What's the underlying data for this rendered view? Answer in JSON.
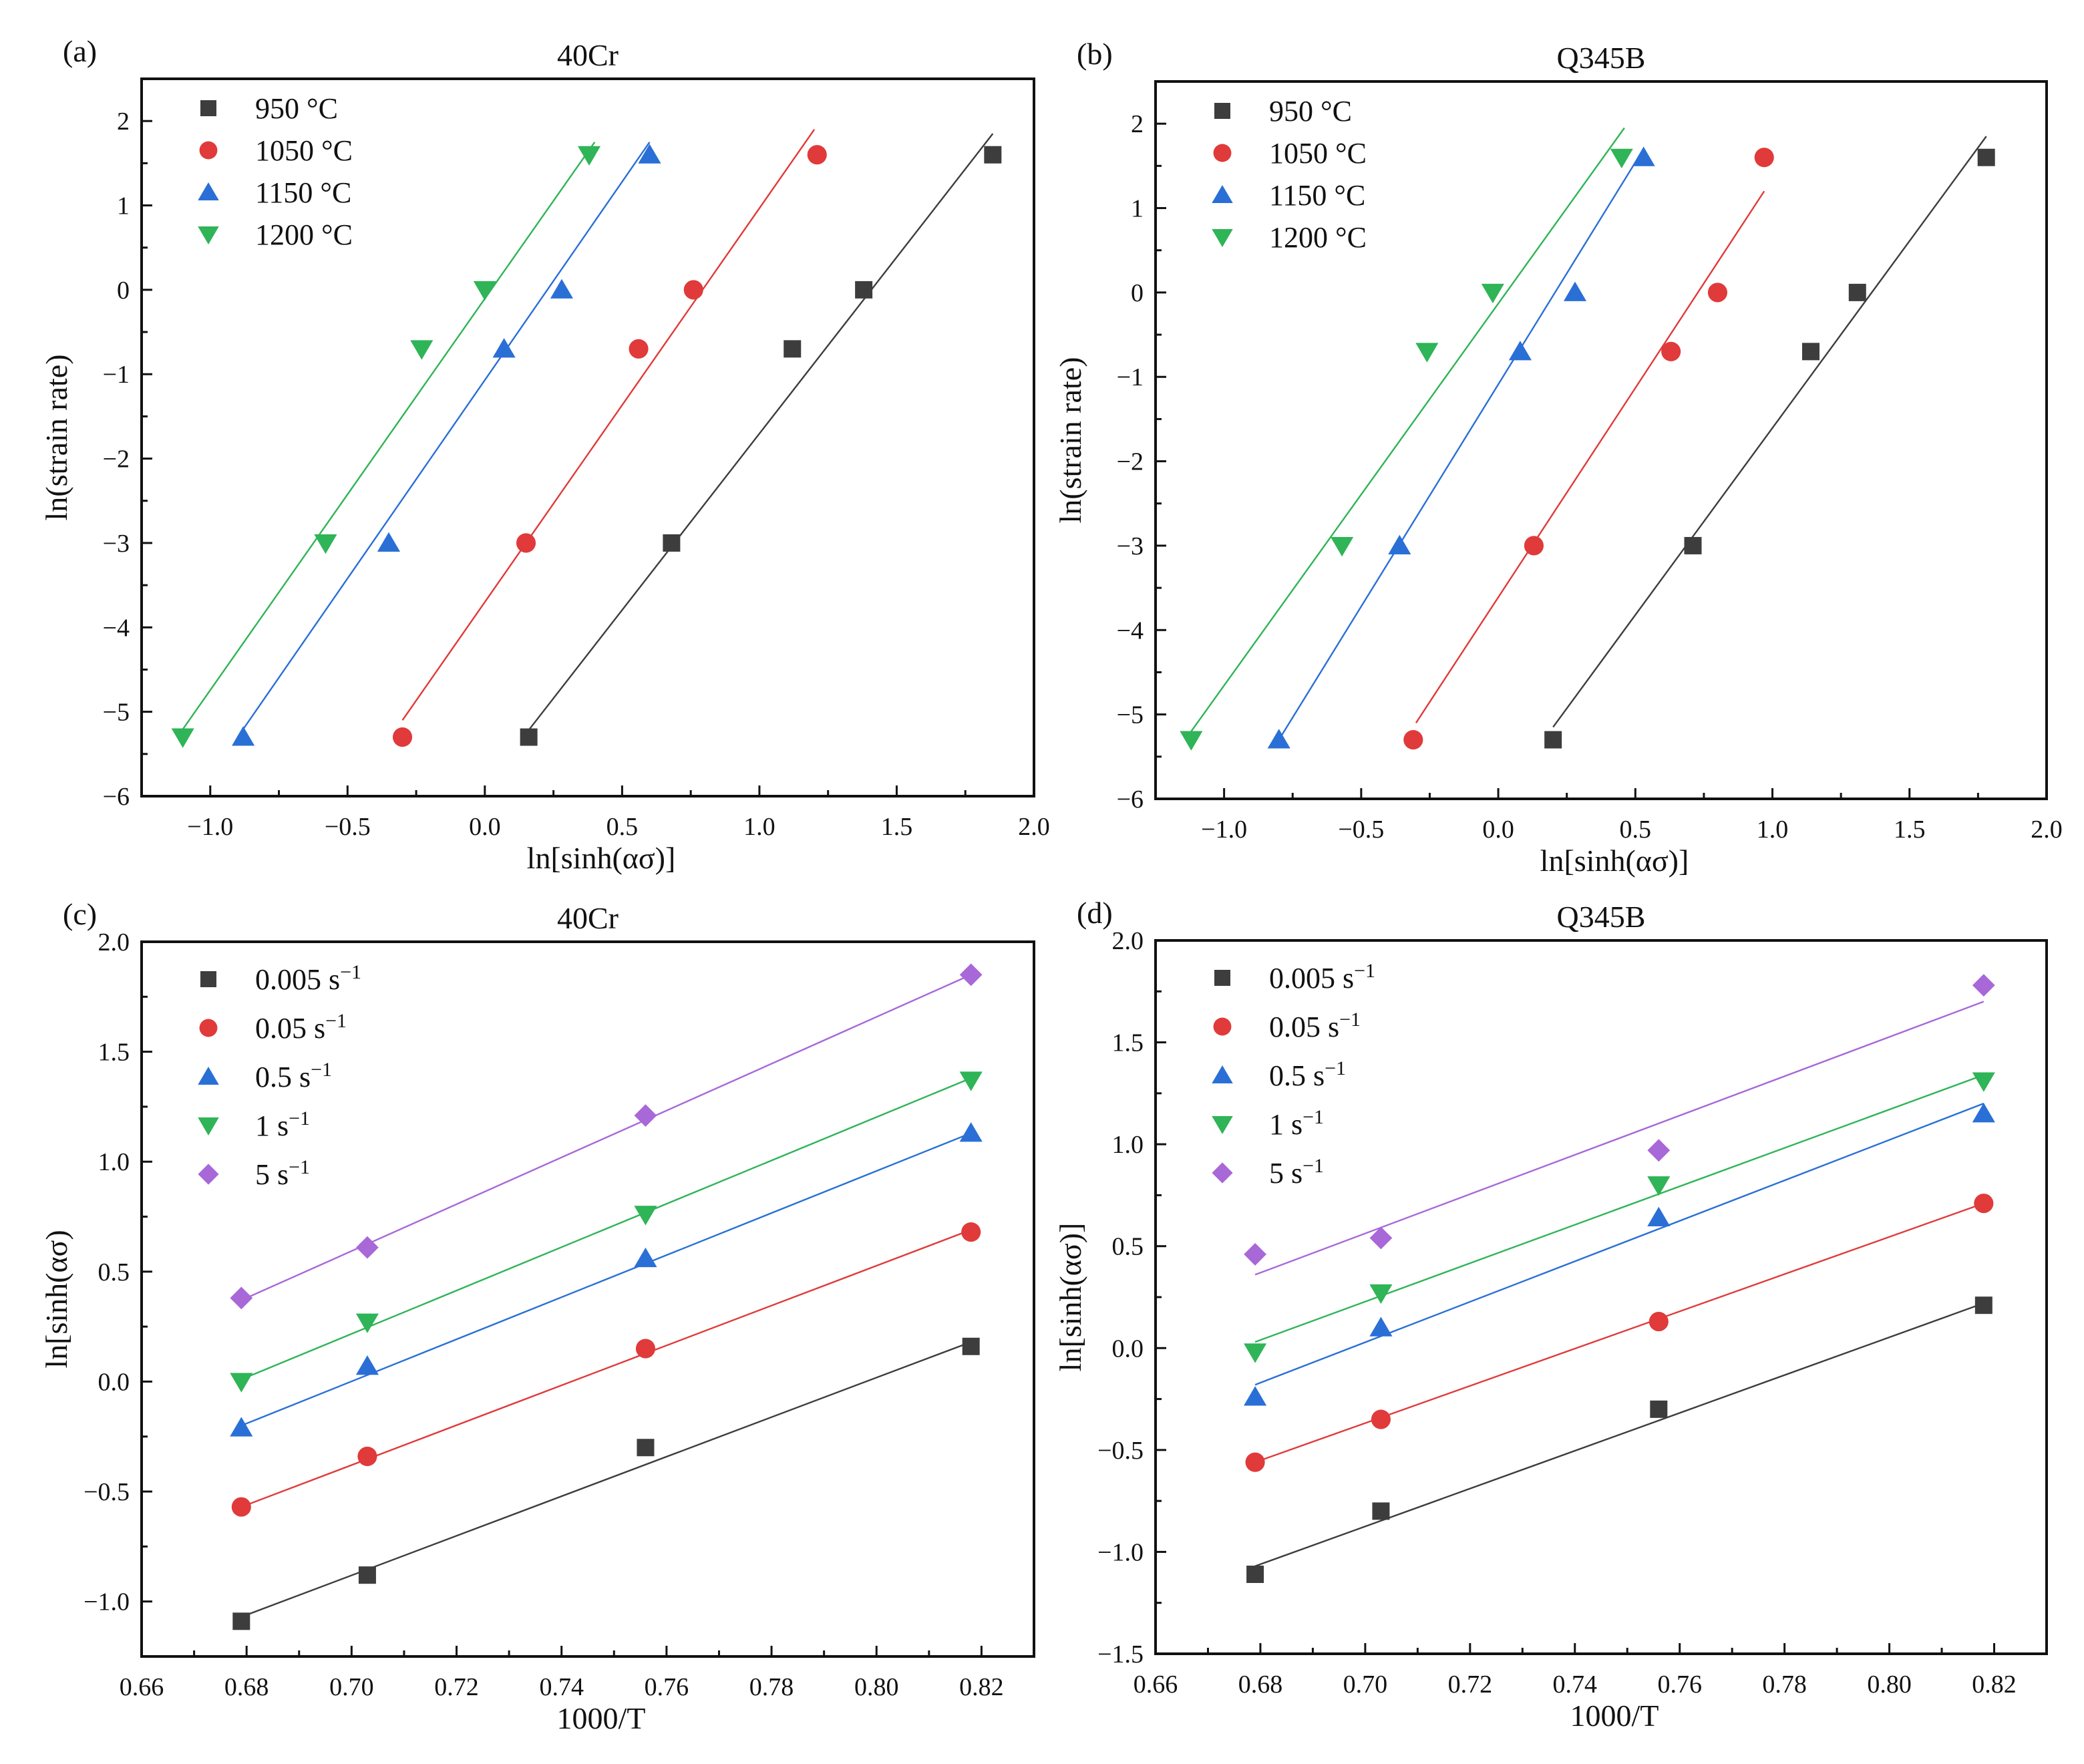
{
  "chart_data": [
    {
      "type": "scatter",
      "panel_label": "(a)",
      "title": "40Cr",
      "xlabel": "ln[sinh(ασ)]",
      "ylabel": "ln(strain rate)",
      "xlim": [
        -1.25,
        2.0
      ],
      "ylim": [
        -6,
        2.5
      ],
      "xticks": [
        -1.0,
        -0.5,
        0.0,
        0.5,
        1.0,
        1.5,
        2.0
      ],
      "xtick_labels": [
        "−1.0",
        "−0.5",
        "0.0",
        "0.5",
        "1.0",
        "1.5",
        "2.0"
      ],
      "yticks": [
        -6,
        -5,
        -4,
        -3,
        -2,
        -1,
        0,
        1,
        2
      ],
      "ytick_labels": [
        "−6",
        "−5",
        "−4",
        "−3",
        "−2",
        "−1",
        "0",
        "1",
        "2"
      ],
      "grid": false,
      "legend_position": "top-left",
      "series": [
        {
          "name": "950 °C",
          "marker": "square",
          "color": "#3d3d3d",
          "x": [
            0.16,
            0.68,
            1.12,
            1.38,
            1.85
          ],
          "y": [
            -5.3,
            -3.0,
            -0.7,
            0.0,
            1.6
          ],
          "fit": [
            [
              0.14,
              -5.3
            ],
            [
              1.85,
              1.85
            ]
          ]
        },
        {
          "name": "1050 °C",
          "marker": "circle",
          "color": "#e03a3a",
          "x": [
            -0.3,
            0.15,
            0.56,
            0.76,
            1.21
          ],
          "y": [
            -5.3,
            -3.0,
            -0.7,
            0.0,
            1.6
          ],
          "fit": [
            [
              -0.3,
              -5.1
            ],
            [
              1.2,
              1.9
            ]
          ]
        },
        {
          "name": "1150 °C",
          "marker": "triangle-up",
          "color": "#2a6fd6",
          "x": [
            -0.88,
            -0.35,
            0.07,
            0.28,
            0.6
          ],
          "y": [
            -5.3,
            -3.0,
            -0.7,
            0.0,
            1.6
          ],
          "fit": [
            [
              -0.9,
              -5.3
            ],
            [
              0.6,
              1.75
            ]
          ]
        },
        {
          "name": "1200 °C",
          "marker": "triangle-down",
          "color": "#2fb457",
          "x": [
            -1.1,
            -0.58,
            -0.23,
            0.0,
            0.38
          ],
          "y": [
            -5.3,
            -3.0,
            -0.7,
            0.0,
            1.6
          ],
          "fit": [
            [
              -1.12,
              -5.3
            ],
            [
              0.4,
              1.75
            ]
          ]
        }
      ]
    },
    {
      "type": "scatter",
      "panel_label": "(b)",
      "title": "Q345B",
      "xlabel": "ln[sinh(ασ)]",
      "ylabel": "ln(strain rate)",
      "xlim": [
        -1.25,
        2.0
      ],
      "ylim": [
        -6,
        2.5
      ],
      "xticks": [
        -1.0,
        -0.5,
        0.0,
        0.5,
        1.0,
        1.5,
        2.0
      ],
      "xtick_labels": [
        "−1.0",
        "−0.5",
        "0.0",
        "0.5",
        "1.0",
        "1.5",
        "2.0"
      ],
      "yticks": [
        -6,
        -5,
        -4,
        -3,
        -2,
        -1,
        0,
        1,
        2
      ],
      "ytick_labels": [
        "−6",
        "−5",
        "−4",
        "−3",
        "−2",
        "−1",
        "0",
        "1",
        "2"
      ],
      "grid": false,
      "legend_position": "top-left",
      "series": [
        {
          "name": "950 °C",
          "marker": "square",
          "color": "#3d3d3d",
          "x": [
            0.2,
            0.71,
            1.14,
            1.31,
            1.78
          ],
          "y": [
            -5.3,
            -3.0,
            -0.7,
            0.0,
            1.6
          ],
          "fit": [
            [
              0.2,
              -5.15
            ],
            [
              1.78,
              1.85
            ]
          ]
        },
        {
          "name": "1050 °C",
          "marker": "circle",
          "color": "#e03a3a",
          "x": [
            -0.31,
            0.13,
            0.63,
            0.8,
            0.97
          ],
          "y": [
            -5.3,
            -3.0,
            -0.7,
            0.0,
            1.6
          ],
          "fit": [
            [
              -0.3,
              -5.1
            ],
            [
              0.97,
              1.2
            ]
          ]
        },
        {
          "name": "1150 °C",
          "marker": "triangle-up",
          "color": "#2a6fd6",
          "x": [
            -0.8,
            -0.36,
            0.08,
            0.28,
            0.53
          ],
          "y": [
            -5.3,
            -3.0,
            -0.7,
            0.0,
            1.6
          ],
          "fit": [
            [
              -0.8,
              -5.3
            ],
            [
              0.53,
              1.7
            ]
          ]
        },
        {
          "name": "1200 °C",
          "marker": "triangle-down",
          "color": "#2fb457",
          "x": [
            -1.12,
            -0.57,
            -0.26,
            -0.02,
            0.45
          ],
          "y": [
            -5.3,
            -3.0,
            -0.7,
            0.0,
            1.6
          ],
          "fit": [
            [
              -1.12,
              -5.2
            ],
            [
              0.46,
              1.95
            ]
          ]
        }
      ]
    },
    {
      "type": "scatter",
      "panel_label": "(c)",
      "title": "40Cr",
      "xlabel": "1000/T",
      "ylabel": "ln[sinh(ασ)",
      "xlim": [
        0.66,
        0.83
      ],
      "ylim": [
        -1.25,
        2.0
      ],
      "xticks": [
        0.66,
        0.68,
        0.7,
        0.72,
        0.74,
        0.76,
        0.78,
        0.8,
        0.82
      ],
      "xtick_labels": [
        "0.66",
        "0.68",
        "0.70",
        "0.72",
        "0.74",
        "0.76",
        "0.78",
        "0.80",
        "0.82"
      ],
      "yticks": [
        -1.0,
        -0.5,
        0.0,
        0.5,
        1.0,
        1.5,
        2.0
      ],
      "ytick_labels": [
        "−1.0",
        "−0.5",
        "0.0",
        "0.5",
        "1.0",
        "1.5",
        "2.0"
      ],
      "grid": false,
      "legend_position": "top-left",
      "series": [
        {
          "name": "0.005 s",
          "sup": "−1",
          "marker": "square",
          "color": "#3d3d3d",
          "x": [
            0.679,
            0.703,
            0.756,
            0.818
          ],
          "y": [
            -1.09,
            -0.88,
            -0.3,
            0.16
          ],
          "fit": [
            [
              0.679,
              -1.07
            ],
            [
              0.818,
              0.18
            ]
          ]
        },
        {
          "name": "0.05 s",
          "sup": "−1",
          "marker": "circle",
          "color": "#e03a3a",
          "x": [
            0.679,
            0.703,
            0.756,
            0.818
          ],
          "y": [
            -0.57,
            -0.34,
            0.15,
            0.68
          ],
          "fit": [
            [
              0.679,
              -0.57
            ],
            [
              0.818,
              0.69
            ]
          ]
        },
        {
          "name": "0.5 s",
          "sup": "−1",
          "marker": "triangle-up",
          "color": "#2a6fd6",
          "x": [
            0.679,
            0.703,
            0.756,
            0.818
          ],
          "y": [
            -0.21,
            0.07,
            0.56,
            1.13
          ],
          "fit": [
            [
              0.679,
              -0.2
            ],
            [
              0.818,
              1.13
            ]
          ]
        },
        {
          "name": "1 s",
          "sup": "−1",
          "marker": "triangle-down",
          "color": "#2fb457",
          "x": [
            0.679,
            0.703,
            0.756,
            0.818
          ],
          "y": [
            0.0,
            0.27,
            0.76,
            1.37
          ],
          "fit": [
            [
              0.679,
              0.01
            ],
            [
              0.818,
              1.38
            ]
          ]
        },
        {
          "name": "5 s",
          "sup": "−1",
          "marker": "diamond",
          "color": "#a868d8",
          "x": [
            0.679,
            0.703,
            0.756,
            0.818
          ],
          "y": [
            0.38,
            0.61,
            1.21,
            1.85
          ],
          "fit": [
            [
              0.679,
              0.37
            ],
            [
              0.818,
              1.85
            ]
          ]
        }
      ]
    },
    {
      "type": "scatter",
      "panel_label": "(d)",
      "title": "Q345B",
      "xlabel": "1000/T",
      "ylabel": "ln[sinh(ασ)]",
      "xlim": [
        0.66,
        0.83
      ],
      "ylim": [
        -1.5,
        2.0
      ],
      "xticks": [
        0.66,
        0.68,
        0.7,
        0.72,
        0.74,
        0.76,
        0.78,
        0.8,
        0.82
      ],
      "xtick_labels": [
        "0.66",
        "0.68",
        "0.70",
        "0.72",
        "0.74",
        "0.76",
        "0.78",
        "0.80",
        "0.82"
      ],
      "yticks": [
        -1.5,
        -1.0,
        -0.5,
        0.0,
        0.5,
        1.0,
        1.5,
        2.0
      ],
      "ytick_labels": [
        "−1.5",
        "−1.0",
        "−0.5",
        "0.0",
        "0.5",
        "1.0",
        "1.5",
        "2.0"
      ],
      "grid": false,
      "legend_position": "top-left",
      "series": [
        {
          "name": "0.005 s",
          "sup": "−1",
          "marker": "square",
          "color": "#3d3d3d",
          "x": [
            0.679,
            0.703,
            0.756,
            0.818
          ],
          "y": [
            -1.11,
            -0.8,
            -0.3,
            0.21
          ],
          "fit": [
            [
              0.679,
              -1.07
            ],
            [
              0.818,
              0.22
            ]
          ]
        },
        {
          "name": "0.05 s",
          "sup": "−1",
          "marker": "circle",
          "color": "#e03a3a",
          "x": [
            0.679,
            0.703,
            0.756,
            0.818
          ],
          "y": [
            -0.56,
            -0.35,
            0.13,
            0.71
          ],
          "fit": [
            [
              0.679,
              -0.56
            ],
            [
              0.818,
              0.71
            ]
          ]
        },
        {
          "name": "0.5 s",
          "sup": "−1",
          "marker": "triangle-up",
          "color": "#2a6fd6",
          "x": [
            0.679,
            0.703,
            0.756,
            0.818
          ],
          "y": [
            -0.24,
            0.1,
            0.64,
            1.15
          ],
          "fit": [
            [
              0.679,
              -0.18
            ],
            [
              0.818,
              1.2
            ]
          ]
        },
        {
          "name": "1 s",
          "sup": "−1",
          "marker": "triangle-down",
          "color": "#2fb457",
          "x": [
            0.679,
            0.703,
            0.756,
            0.818
          ],
          "y": [
            -0.02,
            0.27,
            0.8,
            1.31
          ],
          "fit": [
            [
              0.679,
              0.03
            ],
            [
              0.818,
              1.34
            ]
          ]
        },
        {
          "name": "5 s",
          "sup": "−1",
          "marker": "diamond",
          "color": "#a868d8",
          "x": [
            0.679,
            0.703,
            0.756,
            0.818
          ],
          "y": [
            0.46,
            0.54,
            0.97,
            1.78
          ],
          "fit": [
            [
              0.679,
              0.36
            ],
            [
              0.818,
              1.7
            ]
          ]
        }
      ]
    }
  ]
}
